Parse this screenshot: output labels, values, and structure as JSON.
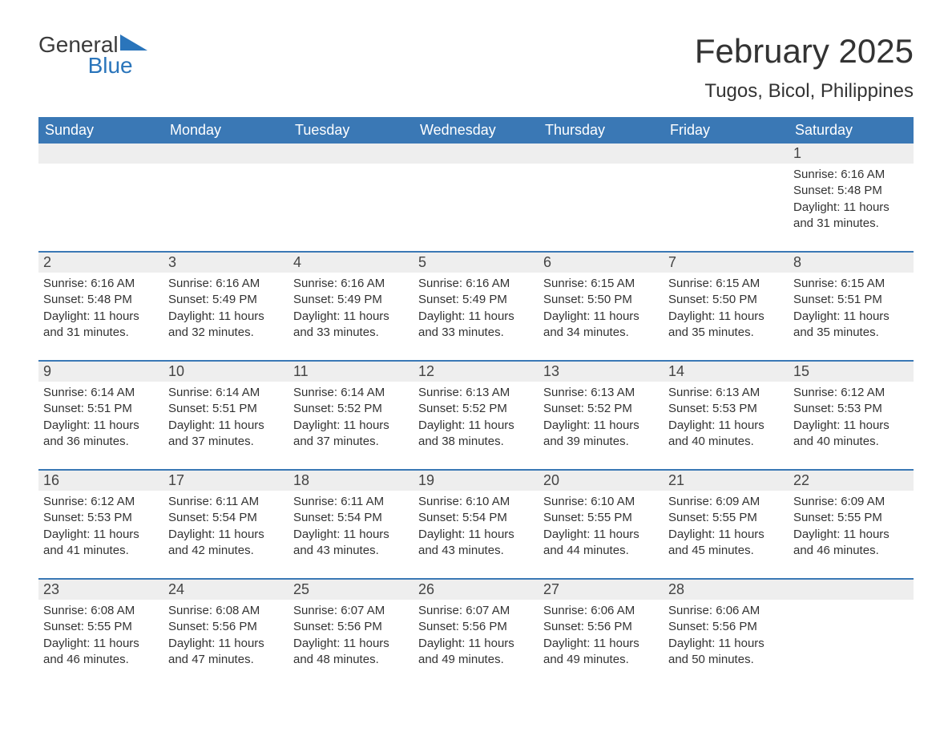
{
  "logo": {
    "text1": "General",
    "text2": "Blue",
    "triangle_color": "#2a75bb"
  },
  "header": {
    "month_title": "February 2025",
    "location": "Tugos, Bicol, Philippines"
  },
  "colors": {
    "header_bg": "#3a78b5",
    "header_text": "#ffffff",
    "daynum_bg": "#eeeeee",
    "week_border": "#3a78b5",
    "body_text": "#333333",
    "background": "#ffffff"
  },
  "typography": {
    "title_fontsize": 42,
    "location_fontsize": 24,
    "dow_fontsize": 18,
    "cell_fontsize": 15
  },
  "days_of_week": [
    "Sunday",
    "Monday",
    "Tuesday",
    "Wednesday",
    "Thursday",
    "Friday",
    "Saturday"
  ],
  "weeks": [
    [
      null,
      null,
      null,
      null,
      null,
      null,
      {
        "n": "1",
        "sunrise": "Sunrise: 6:16 AM",
        "sunset": "Sunset: 5:48 PM",
        "daylight": "Daylight: 11 hours and 31 minutes."
      }
    ],
    [
      {
        "n": "2",
        "sunrise": "Sunrise: 6:16 AM",
        "sunset": "Sunset: 5:48 PM",
        "daylight": "Daylight: 11 hours and 31 minutes."
      },
      {
        "n": "3",
        "sunrise": "Sunrise: 6:16 AM",
        "sunset": "Sunset: 5:49 PM",
        "daylight": "Daylight: 11 hours and 32 minutes."
      },
      {
        "n": "4",
        "sunrise": "Sunrise: 6:16 AM",
        "sunset": "Sunset: 5:49 PM",
        "daylight": "Daylight: 11 hours and 33 minutes."
      },
      {
        "n": "5",
        "sunrise": "Sunrise: 6:16 AM",
        "sunset": "Sunset: 5:49 PM",
        "daylight": "Daylight: 11 hours and 33 minutes."
      },
      {
        "n": "6",
        "sunrise": "Sunrise: 6:15 AM",
        "sunset": "Sunset: 5:50 PM",
        "daylight": "Daylight: 11 hours and 34 minutes."
      },
      {
        "n": "7",
        "sunrise": "Sunrise: 6:15 AM",
        "sunset": "Sunset: 5:50 PM",
        "daylight": "Daylight: 11 hours and 35 minutes."
      },
      {
        "n": "8",
        "sunrise": "Sunrise: 6:15 AM",
        "sunset": "Sunset: 5:51 PM",
        "daylight": "Daylight: 11 hours and 35 minutes."
      }
    ],
    [
      {
        "n": "9",
        "sunrise": "Sunrise: 6:14 AM",
        "sunset": "Sunset: 5:51 PM",
        "daylight": "Daylight: 11 hours and 36 minutes."
      },
      {
        "n": "10",
        "sunrise": "Sunrise: 6:14 AM",
        "sunset": "Sunset: 5:51 PM",
        "daylight": "Daylight: 11 hours and 37 minutes."
      },
      {
        "n": "11",
        "sunrise": "Sunrise: 6:14 AM",
        "sunset": "Sunset: 5:52 PM",
        "daylight": "Daylight: 11 hours and 37 minutes."
      },
      {
        "n": "12",
        "sunrise": "Sunrise: 6:13 AM",
        "sunset": "Sunset: 5:52 PM",
        "daylight": "Daylight: 11 hours and 38 minutes."
      },
      {
        "n": "13",
        "sunrise": "Sunrise: 6:13 AM",
        "sunset": "Sunset: 5:52 PM",
        "daylight": "Daylight: 11 hours and 39 minutes."
      },
      {
        "n": "14",
        "sunrise": "Sunrise: 6:13 AM",
        "sunset": "Sunset: 5:53 PM",
        "daylight": "Daylight: 11 hours and 40 minutes."
      },
      {
        "n": "15",
        "sunrise": "Sunrise: 6:12 AM",
        "sunset": "Sunset: 5:53 PM",
        "daylight": "Daylight: 11 hours and 40 minutes."
      }
    ],
    [
      {
        "n": "16",
        "sunrise": "Sunrise: 6:12 AM",
        "sunset": "Sunset: 5:53 PM",
        "daylight": "Daylight: 11 hours and 41 minutes."
      },
      {
        "n": "17",
        "sunrise": "Sunrise: 6:11 AM",
        "sunset": "Sunset: 5:54 PM",
        "daylight": "Daylight: 11 hours and 42 minutes."
      },
      {
        "n": "18",
        "sunrise": "Sunrise: 6:11 AM",
        "sunset": "Sunset: 5:54 PM",
        "daylight": "Daylight: 11 hours and 43 minutes."
      },
      {
        "n": "19",
        "sunrise": "Sunrise: 6:10 AM",
        "sunset": "Sunset: 5:54 PM",
        "daylight": "Daylight: 11 hours and 43 minutes."
      },
      {
        "n": "20",
        "sunrise": "Sunrise: 6:10 AM",
        "sunset": "Sunset: 5:55 PM",
        "daylight": "Daylight: 11 hours and 44 minutes."
      },
      {
        "n": "21",
        "sunrise": "Sunrise: 6:09 AM",
        "sunset": "Sunset: 5:55 PM",
        "daylight": "Daylight: 11 hours and 45 minutes."
      },
      {
        "n": "22",
        "sunrise": "Sunrise: 6:09 AM",
        "sunset": "Sunset: 5:55 PM",
        "daylight": "Daylight: 11 hours and 46 minutes."
      }
    ],
    [
      {
        "n": "23",
        "sunrise": "Sunrise: 6:08 AM",
        "sunset": "Sunset: 5:55 PM",
        "daylight": "Daylight: 11 hours and 46 minutes."
      },
      {
        "n": "24",
        "sunrise": "Sunrise: 6:08 AM",
        "sunset": "Sunset: 5:56 PM",
        "daylight": "Daylight: 11 hours and 47 minutes."
      },
      {
        "n": "25",
        "sunrise": "Sunrise: 6:07 AM",
        "sunset": "Sunset: 5:56 PM",
        "daylight": "Daylight: 11 hours and 48 minutes."
      },
      {
        "n": "26",
        "sunrise": "Sunrise: 6:07 AM",
        "sunset": "Sunset: 5:56 PM",
        "daylight": "Daylight: 11 hours and 49 minutes."
      },
      {
        "n": "27",
        "sunrise": "Sunrise: 6:06 AM",
        "sunset": "Sunset: 5:56 PM",
        "daylight": "Daylight: 11 hours and 49 minutes."
      },
      {
        "n": "28",
        "sunrise": "Sunrise: 6:06 AM",
        "sunset": "Sunset: 5:56 PM",
        "daylight": "Daylight: 11 hours and 50 minutes."
      },
      null
    ]
  ]
}
